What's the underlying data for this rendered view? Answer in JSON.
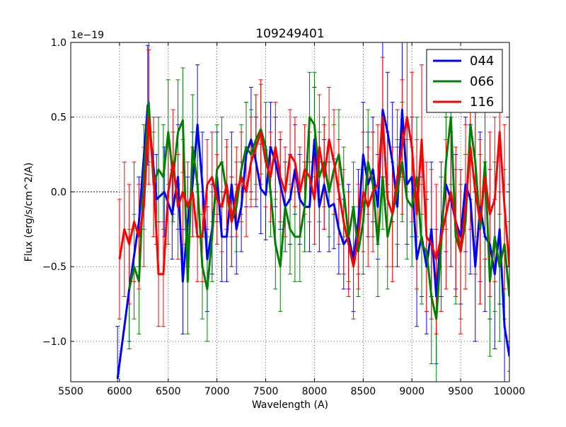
{
  "chart_data": {
    "type": "line",
    "title": "109249401",
    "xlabel": "Wavelength (A)",
    "ylabel": "Flux (erg/s/cm^2/A)",
    "y_offset_label": "1e−19",
    "xlim": [
      5500,
      10000
    ],
    "ylim": [
      -1.27,
      1.0
    ],
    "x_ticks": [
      5500,
      6000,
      6500,
      7000,
      7500,
      8000,
      8500,
      9000,
      9500,
      10000
    ],
    "x_tick_labels": [
      "5500",
      "6000",
      "6500",
      "7000",
      "7500",
      "8000",
      "8500",
      "9000",
      "9500",
      "10000"
    ],
    "y_ticks": [
      -1.0,
      -0.5,
      0.0,
      0.5,
      1.0
    ],
    "y_tick_labels": [
      "−1.0",
      "−0.5",
      "0.0",
      "0.5",
      "1.0"
    ],
    "grid": true,
    "legend_position": "top-right",
    "series": [
      {
        "name": "044",
        "color": "#0000ff",
        "x": [
          5980,
          6100,
          6200,
          6290,
          6380,
          6460,
          6540,
          6600,
          6650,
          6700,
          6750,
          6800,
          6850,
          6900,
          6950,
          7000,
          7050,
          7100,
          7150,
          7200,
          7250,
          7300,
          7350,
          7400,
          7450,
          7500,
          7550,
          7600,
          7650,
          7700,
          7750,
          7800,
          7850,
          7900,
          7950,
          8000,
          8050,
          8100,
          8150,
          8200,
          8250,
          8300,
          8350,
          8400,
          8450,
          8500,
          8550,
          8600,
          8650,
          8700,
          8750,
          8800,
          8850,
          8900,
          8950,
          9000,
          9050,
          9100,
          9150,
          9200,
          9250,
          9300,
          9350,
          9400,
          9450,
          9500,
          9550,
          9600,
          9650,
          9700,
          9750,
          9800,
          9850,
          9900,
          9950,
          10000
        ],
        "y": [
          -1.25,
          -0.65,
          -0.2,
          0.58,
          -0.05,
          0.0,
          -0.15,
          0.1,
          -0.6,
          -0.2,
          0.05,
          0.45,
          0.05,
          -0.45,
          -0.25,
          0.1,
          -0.3,
          -0.3,
          0.05,
          -0.25,
          -0.1,
          0.25,
          0.35,
          0.2,
          0.02,
          -0.02,
          0.3,
          0.2,
          0.05,
          -0.1,
          -0.05,
          0.15,
          -0.05,
          -0.1,
          -0.1,
          0.35,
          -0.1,
          0.05,
          -0.1,
          -0.08,
          -0.25,
          -0.35,
          -0.3,
          -0.45,
          -0.2,
          0.25,
          0.05,
          0.15,
          -0.1,
          0.55,
          0.4,
          0.2,
          -0.1,
          0.55,
          0.05,
          0.1,
          -0.45,
          -0.3,
          -0.5,
          -0.25,
          -0.7,
          -0.25,
          0.05,
          -0.05,
          -0.2,
          -0.3,
          0.05,
          -0.05,
          -0.5,
          -0.1,
          -0.3,
          -0.35,
          -0.55,
          -0.25,
          -0.9,
          -1.1
        ],
        "err": [
          0.35,
          0.35,
          0.3,
          0.4,
          0.3,
          0.3,
          0.3,
          0.35,
          0.35,
          0.3,
          0.35,
          0.4,
          0.35,
          0.35,
          0.3,
          0.3,
          0.3,
          0.3,
          0.35,
          0.3,
          0.3,
          0.35,
          0.35,
          0.3,
          0.3,
          0.3,
          0.3,
          0.3,
          0.3,
          0.3,
          0.3,
          0.3,
          0.3,
          0.3,
          0.3,
          0.35,
          0.3,
          0.3,
          0.3,
          0.3,
          0.3,
          0.3,
          0.35,
          0.35,
          0.35,
          0.35,
          0.35,
          0.35,
          0.35,
          0.45,
          0.4,
          0.4,
          0.4,
          0.45,
          0.4,
          0.4,
          0.45,
          0.4,
          0.45,
          0.45,
          0.45,
          0.45,
          0.45,
          0.45,
          0.45,
          0.45,
          0.45,
          0.5,
          0.5,
          0.5,
          0.5,
          0.5,
          0.5,
          0.5,
          0.5,
          0.5
        ]
      },
      {
        "name": "066",
        "color": "#008000",
        "x": [
          6100,
          6150,
          6200,
          6250,
          6300,
          6350,
          6400,
          6450,
          6500,
          6550,
          6600,
          6650,
          6700,
          6750,
          6800,
          6850,
          6900,
          6950,
          7000,
          7050,
          7100,
          7150,
          7200,
          7250,
          7300,
          7350,
          7400,
          7450,
          7500,
          7550,
          7600,
          7650,
          7700,
          7750,
          7800,
          7850,
          7900,
          7950,
          8000,
          8050,
          8100,
          8150,
          8200,
          8250,
          8300,
          8350,
          8400,
          8450,
          8500,
          8550,
          8600,
          8650,
          8700,
          8750,
          8800,
          8850,
          8900,
          8950,
          9000,
          9050,
          9100,
          9150,
          9200,
          9250,
          9300,
          9350,
          9400,
          9450,
          9500,
          9550,
          9600,
          9650,
          9700,
          9750,
          9800,
          9850,
          9900,
          9950,
          10000
        ],
        "y": [
          -0.65,
          -0.5,
          -0.6,
          0.1,
          0.6,
          0.05,
          0.15,
          0.1,
          0.4,
          0.1,
          0.4,
          0.48,
          -0.6,
          0.3,
          0.05,
          -0.5,
          -0.65,
          -0.3,
          0.15,
          0.2,
          0.0,
          -0.2,
          -0.1,
          0.15,
          0.3,
          0.25,
          0.35,
          0.42,
          0.3,
          0.0,
          -0.35,
          -0.5,
          -0.1,
          -0.25,
          -0.3,
          -0.3,
          -0.1,
          0.5,
          0.45,
          0.1,
          0.2,
          0.0,
          0.15,
          0.25,
          0.0,
          -0.3,
          -0.1,
          -0.4,
          -0.2,
          0.2,
          0.05,
          -0.35,
          0.1,
          -0.3,
          -0.15,
          0.0,
          0.2,
          -0.05,
          -0.1,
          0.1,
          -0.35,
          -0.4,
          -0.7,
          -0.85,
          -0.35,
          0.2,
          0.5,
          -0.3,
          -0.4,
          -0.2,
          0.45,
          0.2,
          -0.25,
          0.2,
          -0.6,
          -0.3,
          -0.5,
          -0.35,
          -0.7
        ],
        "err": [
          0.4,
          0.35,
          0.35,
          0.35,
          0.4,
          0.35,
          0.35,
          0.35,
          0.35,
          0.3,
          0.35,
          0.35,
          0.35,
          0.35,
          0.35,
          0.35,
          0.35,
          0.3,
          0.3,
          0.3,
          0.3,
          0.3,
          0.3,
          0.3,
          0.3,
          0.3,
          0.3,
          0.3,
          0.3,
          0.3,
          0.3,
          0.3,
          0.3,
          0.3,
          0.3,
          0.3,
          0.3,
          0.3,
          0.35,
          0.3,
          0.3,
          0.3,
          0.3,
          0.3,
          0.3,
          0.3,
          0.3,
          0.3,
          0.35,
          0.35,
          0.35,
          0.35,
          0.35,
          0.35,
          0.35,
          0.35,
          0.4,
          0.4,
          0.4,
          0.4,
          0.4,
          0.4,
          0.45,
          0.45,
          0.45,
          0.45,
          0.45,
          0.45,
          0.45,
          0.45,
          0.5,
          0.5,
          0.5,
          0.5,
          0.5,
          0.5,
          0.5,
          0.5,
          0.5
        ]
      },
      {
        "name": "116",
        "color": "#ff0000",
        "x": [
          6000,
          6050,
          6100,
          6150,
          6200,
          6250,
          6300,
          6350,
          6400,
          6450,
          6500,
          6550,
          6600,
          6650,
          6700,
          6750,
          6800,
          6850,
          6900,
          6950,
          7000,
          7050,
          7100,
          7150,
          7200,
          7250,
          7300,
          7350,
          7400,
          7450,
          7500,
          7550,
          7600,
          7650,
          7700,
          7750,
          7800,
          7850,
          7900,
          7950,
          8000,
          8050,
          8100,
          8150,
          8200,
          8250,
          8300,
          8350,
          8400,
          8450,
          8500,
          8550,
          8600,
          8650,
          8700,
          8750,
          8800,
          8850,
          8900,
          8950,
          9000,
          9050,
          9100,
          9150,
          9200,
          9250,
          9300,
          9350,
          9400,
          9450,
          9500,
          9550,
          9600,
          9650,
          9700,
          9750,
          9800,
          9850,
          9900,
          9950,
          10000
        ],
        "y": [
          -0.45,
          -0.25,
          -0.35,
          -0.2,
          -0.3,
          -0.1,
          0.5,
          0.1,
          -0.55,
          -0.55,
          0.0,
          0.2,
          -0.1,
          0.0,
          -0.1,
          0.0,
          -0.3,
          -0.3,
          0.05,
          0.1,
          -0.05,
          -0.1,
          0.05,
          -0.2,
          0.0,
          0.1,
          0.0,
          0.2,
          0.3,
          0.4,
          0.2,
          0.1,
          0.3,
          0.1,
          0.0,
          0.25,
          0.2,
          0.0,
          0.15,
          0.1,
          -0.05,
          0.3,
          0.1,
          0.35,
          0.2,
          0.0,
          -0.2,
          -0.35,
          -0.5,
          -0.3,
          0.0,
          -0.1,
          0.0,
          0.05,
          0.5,
          -0.05,
          -0.15,
          0.1,
          0.3,
          0.5,
          0.3,
          -0.15,
          0.35,
          -0.3,
          -0.35,
          -0.45,
          -0.3,
          -0.15,
          0.0,
          -0.2,
          -0.4,
          -0.1,
          0.3,
          0.0,
          -0.2,
          0.1,
          -0.15,
          -0.05,
          0.4,
          -0.1,
          -0.5
        ],
        "err": [
          0.4,
          0.45,
          0.4,
          0.4,
          0.35,
          0.4,
          0.45,
          0.4,
          0.35,
          0.35,
          0.35,
          0.35,
          0.35,
          0.35,
          0.3,
          0.3,
          0.3,
          0.3,
          0.3,
          0.3,
          0.3,
          0.3,
          0.3,
          0.3,
          0.3,
          0.3,
          0.3,
          0.3,
          0.35,
          0.35,
          0.3,
          0.3,
          0.3,
          0.3,
          0.3,
          0.3,
          0.3,
          0.3,
          0.3,
          0.3,
          0.3,
          0.35,
          0.35,
          0.35,
          0.35,
          0.35,
          0.35,
          0.35,
          0.35,
          0.35,
          0.4,
          0.4,
          0.4,
          0.4,
          0.4,
          0.45,
          0.45,
          0.45,
          0.45,
          0.5,
          0.5,
          0.5,
          0.5,
          0.5,
          0.5,
          0.5,
          0.5,
          0.5,
          0.5,
          0.5,
          0.55,
          0.55,
          0.55,
          0.55,
          0.55,
          0.55,
          0.55,
          0.55,
          0.55,
          0.55,
          0.55
        ]
      }
    ],
    "baseline": {
      "x": [
        5500,
        6000
      ],
      "y": [
        0.0,
        0.0
      ],
      "color": "#8b0000"
    }
  }
}
